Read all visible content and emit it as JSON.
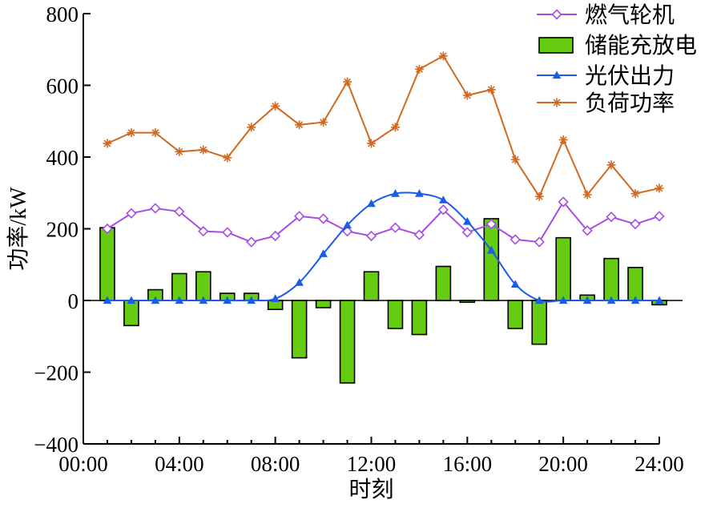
{
  "chart_data": {
    "type": "bar+line",
    "xlabel": "时刻",
    "ylabel": "功率/kW",
    "ylim": [
      -400,
      800
    ],
    "xlim": [
      0,
      24
    ],
    "yticks": [
      -400,
      -200,
      0,
      200,
      400,
      600,
      800
    ],
    "ytick_labels": [
      "−400",
      "−200",
      "0",
      "200",
      "400",
      "600",
      "800"
    ],
    "xticks": [
      0,
      4,
      8,
      12,
      16,
      20,
      24
    ],
    "xtick_labels": [
      "00:00",
      "04:00",
      "08:00",
      "12:00",
      "16:00",
      "20:00",
      "24:00"
    ],
    "hours": [
      1,
      2,
      3,
      4,
      5,
      6,
      7,
      8,
      9,
      10,
      11,
      12,
      13,
      14,
      15,
      16,
      17,
      18,
      19,
      20,
      21,
      22,
      23,
      24
    ],
    "legend_position": "top-right",
    "grid": false,
    "series": [
      {
        "name": "燃气轮机",
        "kind": "line",
        "marker": "diamond",
        "color": "#A64DE6",
        "values": [
          200,
          243,
          257,
          248,
          193,
          190,
          163,
          180,
          235,
          228,
          193,
          180,
          203,
          183,
          253,
          190,
          213,
          170,
          163,
          275,
          195,
          233,
          213,
          235
        ]
      },
      {
        "name": "储能充放电",
        "kind": "bar",
        "color": "#66CC11",
        "values": [
          203,
          -70,
          30,
          75,
          80,
          20,
          20,
          -25,
          -160,
          -20,
          -230,
          80,
          -78,
          -95,
          95,
          -5,
          228,
          -78,
          -122,
          175,
          15,
          117,
          92,
          -12
        ]
      },
      {
        "name": "光伏出力",
        "kind": "line",
        "marker": "triangle",
        "color": "#1A5CE6",
        "values": [
          0,
          0,
          0,
          0,
          0,
          0,
          0,
          5,
          50,
          130,
          210,
          270,
          298,
          298,
          280,
          220,
          140,
          45,
          0,
          0,
          0,
          0,
          0,
          0
        ]
      },
      {
        "name": "负荷功率",
        "kind": "line",
        "marker": "star",
        "color": "#D2691E",
        "values": [
          438,
          468,
          468,
          415,
          420,
          398,
          483,
          542,
          490,
          497,
          610,
          438,
          483,
          645,
          682,
          572,
          588,
          393,
          290,
          448,
          295,
          378,
          298,
          313
        ]
      }
    ]
  }
}
